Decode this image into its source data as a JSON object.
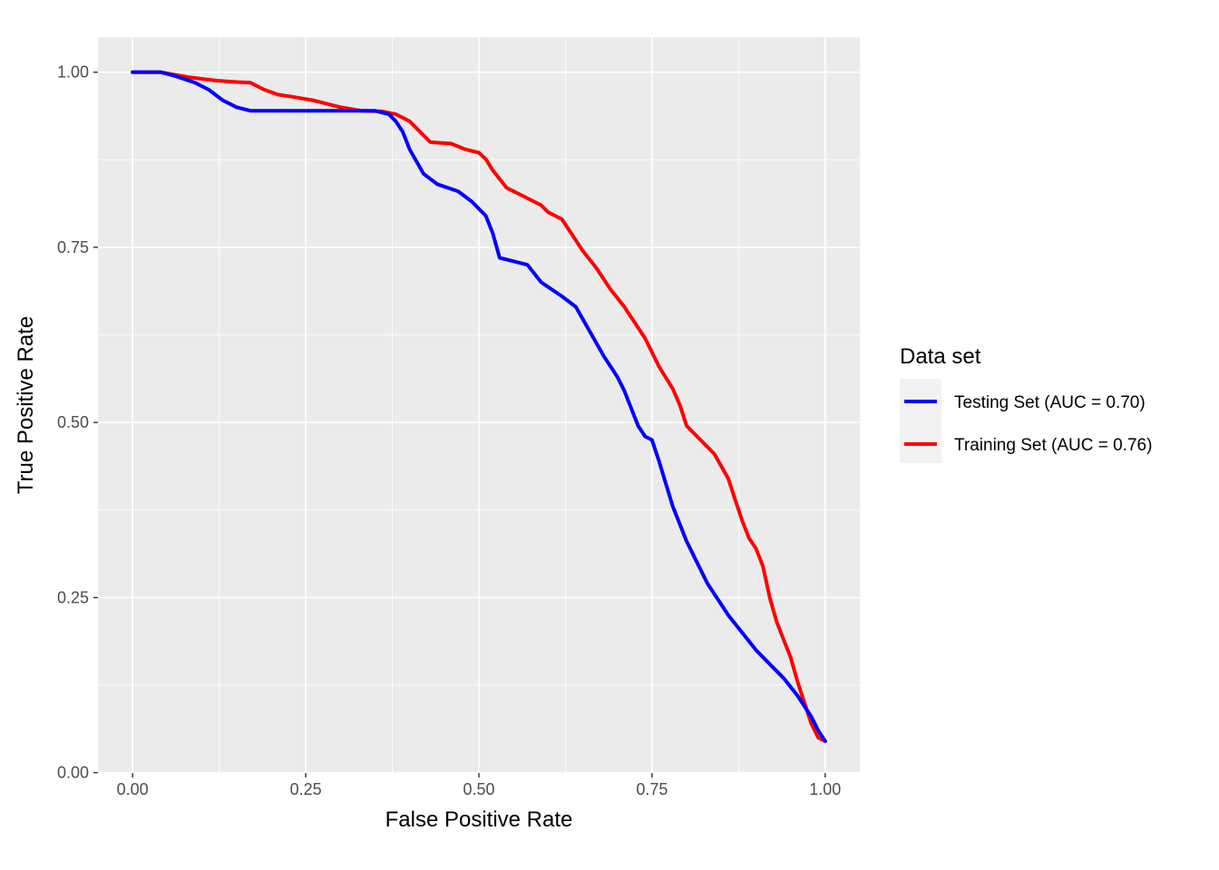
{
  "chart_data": {
    "type": "line",
    "xlabel": "False Positive Rate",
    "ylabel": "True Positive Rate",
    "xlim": [
      -0.05,
      1.05
    ],
    "ylim": [
      -0.0005,
      1.05
    ],
    "xticks": [
      0.0,
      0.25,
      0.5,
      0.75,
      1.0
    ],
    "xtick_labels": [
      "0.00",
      "0.25",
      "0.50",
      "0.75",
      "1.00"
    ],
    "yticks": [
      0.0,
      0.25,
      0.5,
      0.75,
      1.0
    ],
    "ytick_labels": [
      "0.00",
      "0.25",
      "0.50",
      "0.75",
      "1.00"
    ],
    "grid": true,
    "panel_background": "#ebebeb",
    "legend": {
      "title": "Data set",
      "position": "right"
    },
    "series": [
      {
        "name": "Testing Set (AUC = 0.70)",
        "color": "#0000ff",
        "x": [
          0.0,
          0.04,
          0.06,
          0.09,
          0.11,
          0.13,
          0.15,
          0.17,
          0.2,
          0.25,
          0.3,
          0.35,
          0.37,
          0.38,
          0.39,
          0.4,
          0.42,
          0.44,
          0.47,
          0.49,
          0.51,
          0.52,
          0.53,
          0.55,
          0.57,
          0.59,
          0.62,
          0.64,
          0.66,
          0.68,
          0.7,
          0.71,
          0.72,
          0.73,
          0.74,
          0.75,
          0.76,
          0.78,
          0.8,
          0.83,
          0.86,
          0.88,
          0.9,
          0.92,
          0.94,
          0.96,
          0.98,
          0.99,
          1.0
        ],
        "y": [
          1.0,
          1.0,
          0.995,
          0.985,
          0.975,
          0.96,
          0.95,
          0.945,
          0.945,
          0.945,
          0.945,
          0.945,
          0.94,
          0.93,
          0.915,
          0.89,
          0.855,
          0.84,
          0.83,
          0.815,
          0.795,
          0.77,
          0.735,
          0.73,
          0.725,
          0.7,
          0.68,
          0.665,
          0.63,
          0.595,
          0.565,
          0.545,
          0.52,
          0.495,
          0.48,
          0.475,
          0.445,
          0.38,
          0.33,
          0.27,
          0.225,
          0.2,
          0.175,
          0.155,
          0.135,
          0.11,
          0.08,
          0.06,
          0.045
        ]
      },
      {
        "name": "Training Set (AUC = 0.76)",
        "color": "#ff0000",
        "x": [
          0.0,
          0.04,
          0.08,
          0.12,
          0.15,
          0.17,
          0.19,
          0.21,
          0.23,
          0.26,
          0.28,
          0.3,
          0.33,
          0.36,
          0.38,
          0.4,
          0.42,
          0.43,
          0.46,
          0.48,
          0.5,
          0.51,
          0.52,
          0.54,
          0.56,
          0.58,
          0.59,
          0.6,
          0.62,
          0.63,
          0.65,
          0.67,
          0.69,
          0.71,
          0.72,
          0.74,
          0.76,
          0.78,
          0.79,
          0.8,
          0.82,
          0.84,
          0.86,
          0.87,
          0.88,
          0.89,
          0.9,
          0.91,
          0.92,
          0.93,
          0.94,
          0.95,
          0.96,
          0.97,
          0.98,
          0.99,
          1.0
        ],
        "y": [
          1.0,
          1.0,
          0.993,
          0.988,
          0.986,
          0.985,
          0.975,
          0.968,
          0.965,
          0.96,
          0.955,
          0.95,
          0.945,
          0.944,
          0.94,
          0.93,
          0.91,
          0.9,
          0.898,
          0.89,
          0.885,
          0.876,
          0.86,
          0.835,
          0.825,
          0.815,
          0.81,
          0.8,
          0.79,
          0.775,
          0.745,
          0.72,
          0.69,
          0.665,
          0.65,
          0.62,
          0.58,
          0.548,
          0.525,
          0.495,
          0.475,
          0.455,
          0.42,
          0.39,
          0.36,
          0.335,
          0.32,
          0.295,
          0.25,
          0.215,
          0.19,
          0.165,
          0.13,
          0.1,
          0.07,
          0.05,
          0.045
        ]
      }
    ]
  }
}
